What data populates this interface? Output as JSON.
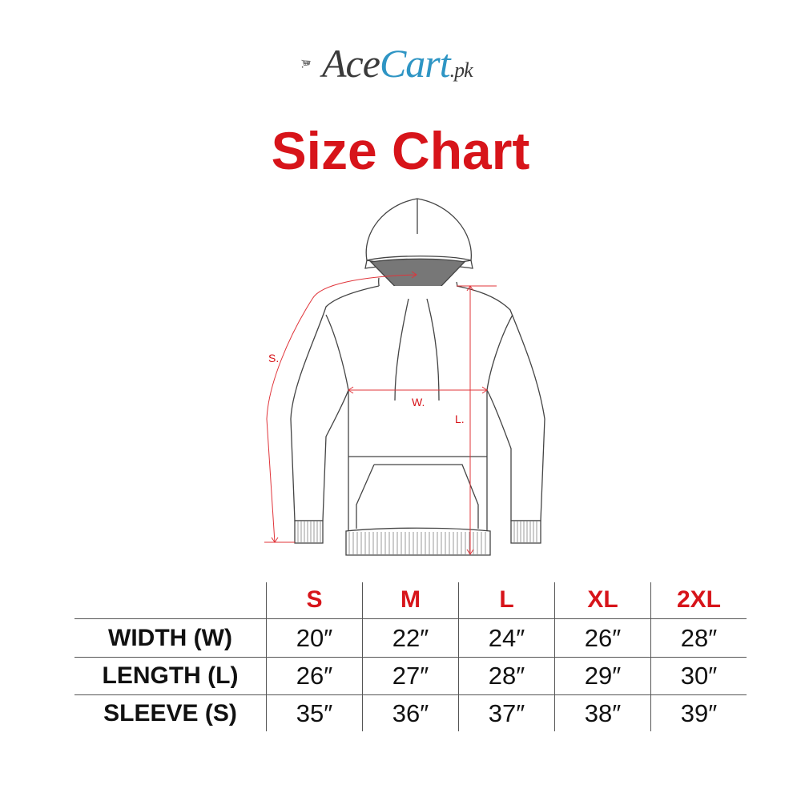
{
  "logo": {
    "part1": "Ace",
    "part2": "Cart",
    "part3": ".pk",
    "icon": "shopping-cart-icon",
    "colors": {
      "dark": "#3a3a3a",
      "blue": "#2e95c4"
    }
  },
  "title": "Size Chart",
  "accent_color": "#d7141a",
  "diagram": {
    "labels": {
      "sleeve": "S.",
      "width": "W.",
      "length": "L."
    }
  },
  "table": {
    "sizes": [
      "S",
      "M",
      "L",
      "XL",
      "2XL"
    ],
    "rows": [
      {
        "label": "WIDTH (W)",
        "values": [
          "20″",
          "22″",
          "24″",
          "26″",
          "28″"
        ]
      },
      {
        "label": "LENGTH (L)",
        "values": [
          "26″",
          "27″",
          "28″",
          "29″",
          "30″"
        ]
      },
      {
        "label": "SLEEVE (S)",
        "values": [
          "35″",
          "36″",
          "37″",
          "38″",
          "39″"
        ]
      }
    ]
  }
}
